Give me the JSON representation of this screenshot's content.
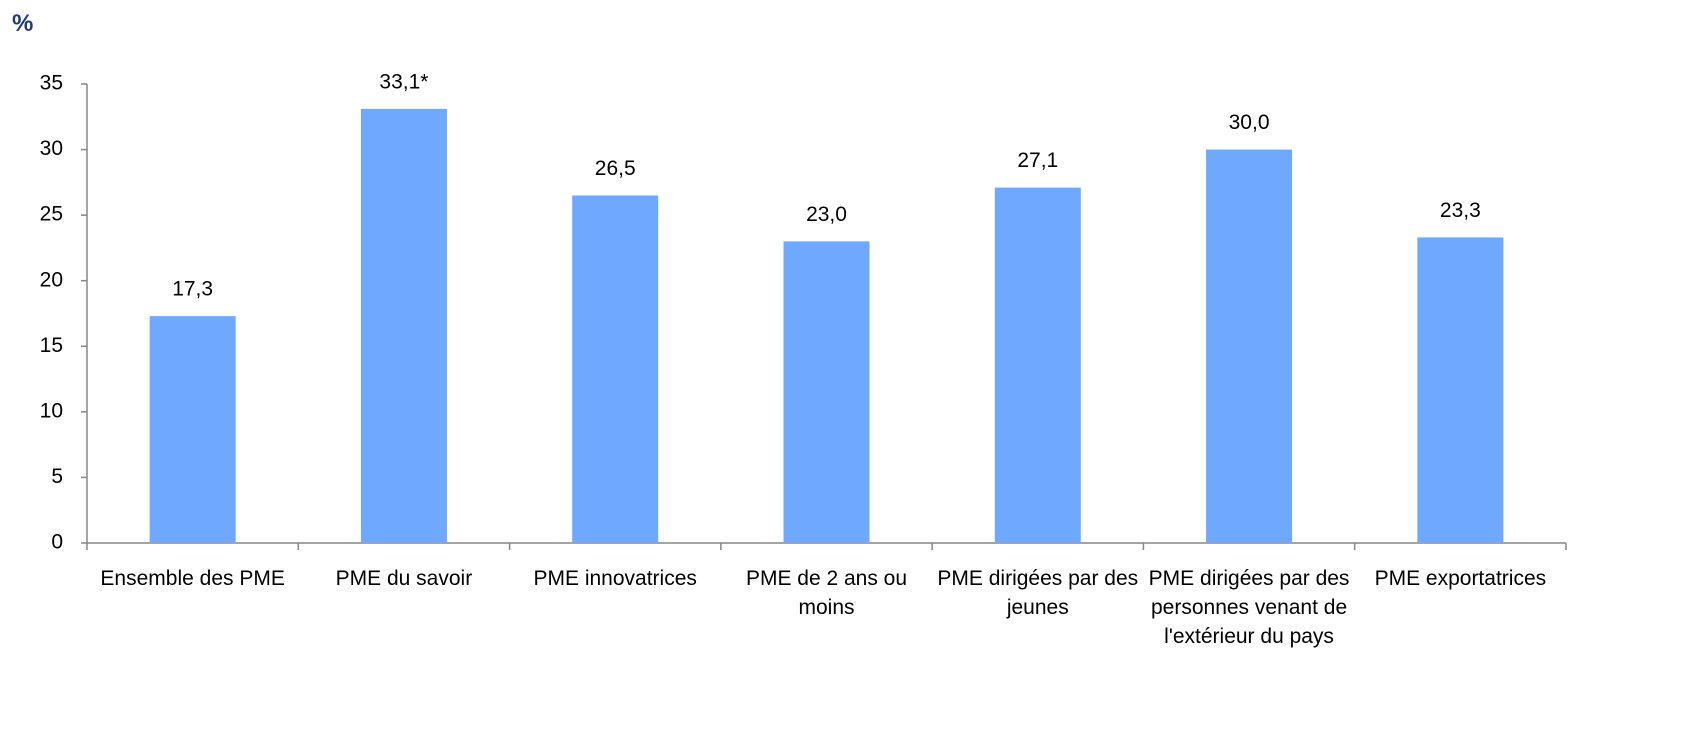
{
  "chart_data": {
    "type": "bar",
    "y_axis_label": "%",
    "categories": [
      "Ensemble des PME",
      "PME du savoir",
      "PME innovatrices",
      "PME de 2 ans ou moins",
      "PME dirigées par des jeunes",
      "PME dirigées par des personnes venant de l'extérieur du pays",
      "PME exportatrices"
    ],
    "values": [
      17.3,
      33.1,
      26.5,
      23.0,
      27.1,
      30.0,
      23.3
    ],
    "value_labels": [
      "17,3",
      "33,1*",
      "26,5",
      "23,0",
      "27,1",
      "30,0",
      "23,3"
    ],
    "color": "#6fa8ff",
    "ylim": [
      0,
      35
    ],
    "yticks": [
      0,
      5,
      10,
      15,
      20,
      25,
      30,
      35
    ],
    "grid": false
  }
}
